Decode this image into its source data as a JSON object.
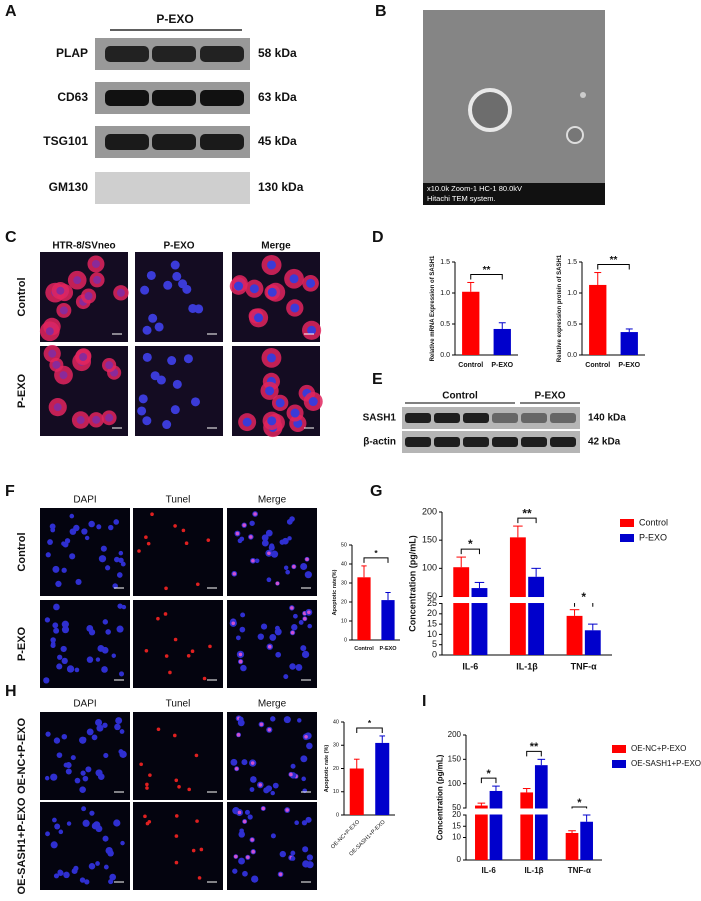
{
  "panel_labels": [
    "A",
    "B",
    "C",
    "D",
    "E",
    "F",
    "G",
    "H",
    "I"
  ],
  "blot_a": {
    "group": "P-EXO",
    "rows": [
      {
        "name": "PLAP",
        "size": "58 kDa"
      },
      {
        "name": "CD63",
        "size": "63 kDa"
      },
      {
        "name": "TSG101",
        "size": "45 kDa"
      },
      {
        "name": "GM130",
        "size": "130 kDa"
      }
    ]
  },
  "tem": {
    "caption": [
      "x10.0k Zoom-1 HC-1 80.0kV",
      "Hitachi TEM system."
    ]
  },
  "if_c": {
    "columns": [
      "HTR-8/SVneo",
      "P-EXO",
      "Merge"
    ],
    "rows": [
      "Control",
      "P-EXO"
    ]
  },
  "blot_e": {
    "groups": [
      "Control",
      "P-EXO"
    ],
    "rows": [
      {
        "name": "SASH1",
        "size": "140 kDa"
      },
      {
        "name": "β-actin",
        "size": "42 kDa"
      }
    ]
  },
  "tunel_f": {
    "columns": [
      "DAPI",
      "Tunel",
      "Merge"
    ],
    "rows": [
      "Control",
      "P-EXO"
    ]
  },
  "tunel_h": {
    "columns": [
      "DAPI",
      "Tunel",
      "Merge"
    ],
    "rows": [
      "OE-NC+P-EXO",
      "OE-SASH1+P-EXO"
    ]
  },
  "chart_data": [
    {
      "type": "bar",
      "ylabel": "Relative mRNA Expression of SASH1",
      "categories": [
        "Control",
        "P-EXO"
      ],
      "values": [
        1.02,
        0.42
      ],
      "errors": [
        0.15,
        0.1
      ],
      "colors": [
        "#ff0000",
        "#0000cc"
      ],
      "significance": "**",
      "ylim": [
        0,
        1.5
      ],
      "yticks": [
        {
          "value": 0,
          "label": "0.0"
        },
        0.5,
        {
          "value": 1,
          "label": "1.0"
        },
        1.5
      ]
    },
    {
      "type": "bar",
      "ylabel": "Relative expression protein of SASH1",
      "categories": [
        "Control",
        "P-EXO"
      ],
      "values": [
        1.13,
        0.37
      ],
      "errors": [
        0.2,
        0.05
      ],
      "colors": [
        "#ff0000",
        "#0000cc"
      ],
      "significance": "**",
      "ylim": [
        0,
        1.5
      ],
      "yticks": [
        {
          "value": 0,
          "label": "0.0"
        },
        0.5,
        {
          "value": 1,
          "label": "1.0"
        },
        1.5
      ]
    },
    {
      "type": "bar",
      "ylabel": "Apoptotic rate(%)",
      "categories": [
        "Control",
        "P-EXO"
      ],
      "values": [
        33,
        21
      ],
      "errors": [
        6,
        4
      ],
      "colors": [
        "#ff0000",
        "#0000cc"
      ],
      "significance": "*",
      "ylim": [
        0,
        50
      ],
      "yticks": [
        0,
        10,
        20,
        30,
        40,
        50
      ]
    },
    {
      "type": "grouped_bar",
      "ylabel": "Concentration (pg/mL)",
      "categories": [
        "IL-6",
        "IL-1β",
        "TNF-α"
      ],
      "series": [
        {
          "name": "Control",
          "color": "#ff0000",
          "values": [
            102,
            155,
            19
          ],
          "errors": [
            18,
            20,
            3
          ]
        },
        {
          "name": "P-EXO",
          "color": "#0000cc",
          "values": [
            65,
            85,
            12
          ],
          "errors": [
            10,
            15,
            3
          ]
        }
      ],
      "significance": [
        "*",
        "**",
        "*"
      ],
      "ylim": [
        0,
        200
      ],
      "ybreak": [
        25,
        50
      ],
      "yticks": [
        0,
        5,
        10,
        15,
        20,
        25,
        50,
        100,
        150,
        200
      ]
    },
    {
      "type": "bar",
      "ylabel": "Apoptotic rate (%)",
      "categories": [
        "OE-NC+P-EXO",
        "OE-SASH1+P-EXO"
      ],
      "values": [
        20,
        31
      ],
      "errors": [
        4,
        3
      ],
      "colors": [
        "#ff0000",
        "#0000cc"
      ],
      "significance": "*",
      "ylim": [
        0,
        40
      ],
      "yticks": [
        0,
        10,
        20,
        30,
        40
      ]
    },
    {
      "type": "grouped_bar",
      "ylabel": "Concentration (pg/mL)",
      "categories": [
        "IL-6",
        "IL-1β",
        "TNF-α"
      ],
      "series": [
        {
          "name": "OE-NC+P-EXO",
          "color": "#ff0000",
          "values": [
            55,
            82,
            12
          ],
          "errors": [
            5,
            8,
            1
          ]
        },
        {
          "name": "OE-SASH1+P-EXO",
          "color": "#0000cc",
          "values": [
            85,
            138,
            17
          ],
          "errors": [
            10,
            12,
            3
          ]
        }
      ],
      "significance": [
        "*",
        "**",
        "*"
      ],
      "ylim": [
        0,
        200
      ],
      "ybreak": [
        20,
        50
      ],
      "yticks": [
        0,
        10,
        15,
        20,
        50,
        100,
        150,
        200
      ]
    }
  ]
}
